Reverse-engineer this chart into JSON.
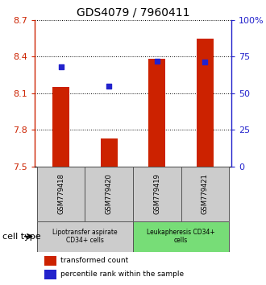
{
  "title": "GDS4079 / 7960411",
  "samples": [
    "GSM779418",
    "GSM779420",
    "GSM779419",
    "GSM779421"
  ],
  "transformed_counts": [
    8.15,
    7.73,
    8.38,
    8.55
  ],
  "percentile_ranks": [
    68,
    55,
    72,
    71
  ],
  "ylim": [
    7.5,
    8.7
  ],
  "yticks": [
    7.5,
    7.8,
    8.1,
    8.4,
    8.7
  ],
  "ytick_labels": [
    "7.5",
    "7.8",
    "8.1",
    "8.4",
    "8.7"
  ],
  "y2lim": [
    0,
    100
  ],
  "y2ticks": [
    0,
    25,
    50,
    75,
    100
  ],
  "y2tick_labels": [
    "0",
    "25",
    "50",
    "75",
    "100%"
  ],
  "bar_color": "#cc2200",
  "dot_color": "#2222cc",
  "bar_width": 0.35,
  "groups": [
    {
      "label": "Lipotransfer aspirate\nCD34+ cells",
      "samples": [
        0,
        1
      ],
      "color": "#cccccc"
    },
    {
      "label": "Leukapheresis CD34+\ncells",
      "samples": [
        2,
        3
      ],
      "color": "#77dd77"
    }
  ],
  "cell_type_label": "cell type",
  "legend_bar_label": "transformed count",
  "legend_dot_label": "percentile rank within the sample",
  "grid_color": "#000000"
}
